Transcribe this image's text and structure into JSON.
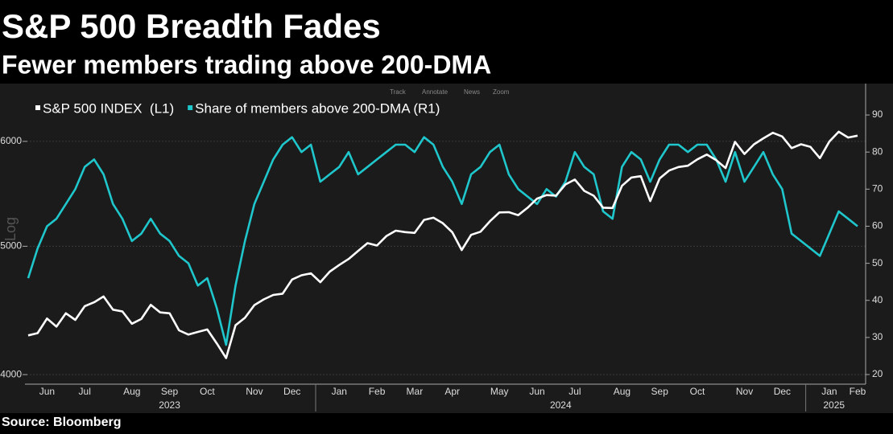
{
  "chart_data": {
    "type": "line",
    "title": "S&P 500 Breadth Fades",
    "subtitle": "Fewer members trading above 200-DMA",
    "source": "Source: Bloomberg",
    "toolbar": [
      "Track",
      "Annotate",
      "News",
      "Zoom"
    ],
    "y_scale_label": "Log",
    "categories": [
      null,
      null,
      "Jun",
      null,
      null,
      null,
      "Jul",
      null,
      null,
      null,
      null,
      "Aug",
      null,
      null,
      null,
      "Sep",
      null,
      null,
      null,
      "Oct",
      null,
      null,
      null,
      null,
      "Nov",
      null,
      null,
      null,
      "Dec",
      null,
      null,
      null,
      null,
      "Jan",
      null,
      null,
      null,
      "Feb",
      null,
      null,
      null,
      "Mar",
      null,
      null,
      null,
      "Apr",
      null,
      null,
      null,
      null,
      "May",
      null,
      null,
      null,
      "Jun",
      null,
      null,
      null,
      "Jul",
      null,
      null,
      null,
      null,
      "Aug",
      null,
      null,
      null,
      "Sep",
      null,
      null,
      null,
      "Oct",
      null,
      null,
      null,
      null,
      "Nov",
      null,
      null,
      null,
      "Dec",
      null,
      null,
      null,
      null,
      "Jan",
      null,
      null,
      "Feb"
    ],
    "category_years": [
      "2023",
      "2023",
      "2023",
      "2023",
      "2023",
      "2023",
      "2023",
      "2023",
      "2023",
      "2023",
      "2023",
      "2023",
      "2023",
      "2023",
      "2023",
      "2023",
      "2023",
      "2023",
      "2023",
      "2023",
      "2023",
      "2023",
      "2023",
      "2023",
      "2023",
      "2023",
      "2023",
      "2023",
      "2023",
      "2023",
      "2023",
      "2024",
      "2024",
      "2024",
      "2024",
      "2024",
      "2024",
      "2024",
      "2024",
      "2024",
      "2024",
      "2024",
      "2024",
      "2024",
      "2024",
      "2024",
      "2024",
      "2024",
      "2024",
      "2024",
      "2024",
      "2024",
      "2024",
      "2024",
      "2024",
      "2024",
      "2024",
      "2024",
      "2024",
      "2024",
      "2024",
      "2024",
      "2024",
      "2024",
      "2024",
      "2024",
      "2024",
      "2024",
      "2024",
      "2024",
      "2024",
      "2024",
      "2024",
      "2024",
      "2024",
      "2024",
      "2024",
      "2024",
      "2024",
      "2024",
      "2024",
      "2024",
      "2024",
      "2025",
      "2025",
      "2025",
      "2025",
      "2025",
      "2025"
    ],
    "series": [
      {
        "name": "S&P 500 INDEX  (L1)",
        "color": "#ffffff",
        "axis": "y",
        "values": [
          4282,
          4299,
          4410,
          4348,
          4450,
          4399,
          4505,
          4536,
          4582,
          4478,
          4464,
          4370,
          4406,
          4516,
          4457,
          4450,
          4320,
          4288,
          4308,
          4327,
          4224,
          4117,
          4358,
          4415,
          4514,
          4559,
          4594,
          4604,
          4719,
          4754,
          4770,
          4697,
          4784,
          4840,
          4891,
          4959,
          5027,
          5006,
          5089,
          5137,
          5124,
          5117,
          5234,
          5254,
          5204,
          5123,
          4967,
          5100,
          5128,
          5223,
          5303,
          5305,
          5278,
          5347,
          5432,
          5465,
          5460,
          5567,
          5615,
          5505,
          5459,
          5347,
          5344,
          5554,
          5634,
          5648,
          5408,
          5626,
          5703,
          5738,
          5751,
          5815,
          5864,
          5808,
          5728,
          5995,
          5870,
          5969,
          6032,
          6090,
          6051,
          5930,
          5970,
          5942,
          5827,
          5997,
          6101,
          6040,
          6060
        ]
      },
      {
        "name": "Share of members above 200-DMA (R1)",
        "color": "#1fc7cc",
        "axis": "y2",
        "values": [
          46,
          54,
          60,
          62,
          66,
          70,
          76,
          78,
          74,
          66,
          62,
          56,
          58,
          62,
          58,
          56,
          52,
          50,
          44,
          46,
          38,
          28,
          44,
          56,
          66,
          72,
          78,
          82,
          84,
          80,
          82,
          72,
          74,
          76,
          80,
          74,
          76,
          78,
          80,
          82,
          82,
          80,
          84,
          82,
          76,
          72,
          66,
          74,
          76,
          80,
          82,
          74,
          70,
          68,
          66,
          70,
          68,
          72,
          80,
          76,
          74,
          64,
          62,
          76,
          80,
          78,
          72,
          78,
          82,
          82,
          80,
          82,
          82,
          78,
          72,
          80,
          72,
          76,
          80,
          74,
          70,
          58,
          56,
          54,
          52,
          58,
          64,
          62,
          60
        ]
      }
    ],
    "ylim": [
      3934,
      6597
    ],
    "log_y": true,
    "yticks": [
      4000,
      5000,
      6000
    ],
    "y2lim": [
      17.4,
      97.6
    ],
    "y2ticks": [
      20,
      30,
      40,
      50,
      60,
      70,
      80,
      90
    ],
    "grid": true,
    "legend": "top-left"
  }
}
